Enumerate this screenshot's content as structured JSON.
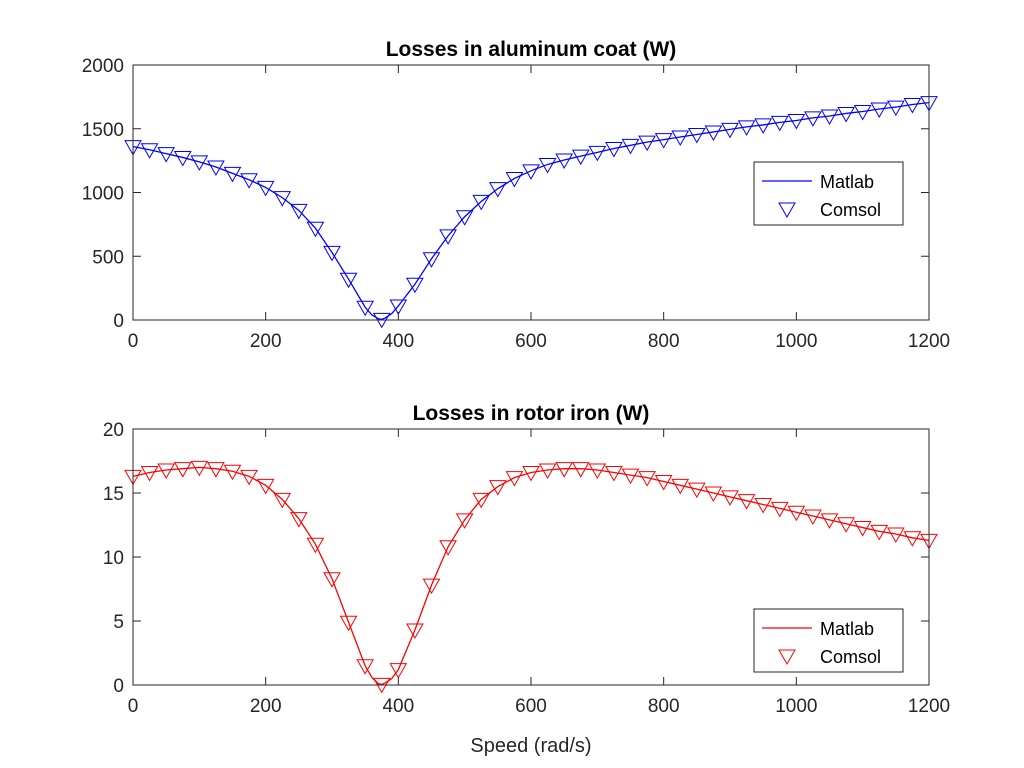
{
  "chart_data": [
    {
      "type": "line",
      "title": "Losses in aluminum coat (W)",
      "xlabel": "",
      "ylabel": "",
      "xlim": [
        0,
        1200
      ],
      "ylim": [
        0,
        2000
      ],
      "xticks": [
        "0",
        "200",
        "400",
        "600",
        "800",
        "1000",
        "1200"
      ],
      "yticks": [
        "0",
        "500",
        "1000",
        "1500",
        "2000"
      ],
      "grid": false,
      "legend_position": "right",
      "color": "#0000ff",
      "series": [
        {
          "name": "Matlab",
          "style": "line",
          "x": [
            0,
            25,
            50,
            75,
            100,
            125,
            150,
            175,
            200,
            225,
            250,
            275,
            300,
            325,
            350,
            360,
            370,
            375,
            380,
            390,
            400,
            425,
            450,
            475,
            500,
            525,
            550,
            575,
            600,
            625,
            650,
            675,
            700,
            725,
            750,
            775,
            800,
            825,
            850,
            875,
            900,
            925,
            950,
            975,
            1000,
            1025,
            1050,
            1075,
            1100,
            1125,
            1150,
            1175,
            1200
          ],
          "y": [
            1360,
            1335,
            1305,
            1275,
            1240,
            1200,
            1150,
            1100,
            1040,
            960,
            860,
            720,
            530,
            320,
            100,
            40,
            10,
            5,
            15,
            50,
            110,
            280,
            480,
            660,
            810,
            930,
            1030,
            1110,
            1170,
            1220,
            1255,
            1285,
            1315,
            1345,
            1370,
            1395,
            1415,
            1435,
            1455,
            1475,
            1495,
            1515,
            1530,
            1550,
            1565,
            1585,
            1600,
            1620,
            1635,
            1655,
            1670,
            1690,
            1705
          ]
        },
        {
          "name": "Comsol",
          "style": "marker",
          "marker": "triangle-down",
          "x": [
            0,
            25,
            50,
            75,
            100,
            125,
            150,
            175,
            200,
            225,
            250,
            275,
            300,
            325,
            350,
            375,
            400,
            425,
            450,
            475,
            500,
            525,
            550,
            575,
            600,
            625,
            650,
            675,
            700,
            725,
            750,
            775,
            800,
            825,
            850,
            875,
            900,
            925,
            950,
            975,
            1000,
            1025,
            1050,
            1075,
            1100,
            1125,
            1150,
            1175,
            1200
          ],
          "y": [
            1360,
            1335,
            1305,
            1275,
            1240,
            1200,
            1150,
            1100,
            1040,
            960,
            860,
            720,
            530,
            320,
            100,
            5,
            110,
            280,
            480,
            660,
            810,
            930,
            1030,
            1110,
            1170,
            1220,
            1255,
            1285,
            1315,
            1345,
            1370,
            1395,
            1415,
            1435,
            1455,
            1475,
            1495,
            1515,
            1530,
            1550,
            1565,
            1585,
            1600,
            1620,
            1635,
            1655,
            1670,
            1690,
            1705
          ]
        }
      ]
    },
    {
      "type": "line",
      "title": "Losses in rotor iron (W)",
      "xlabel": "Speed (rad/s)",
      "ylabel": "",
      "xlim": [
        0,
        1200
      ],
      "ylim": [
        0,
        20
      ],
      "xticks": [
        "0",
        "200",
        "400",
        "600",
        "800",
        "1000",
        "1200"
      ],
      "yticks": [
        "0",
        "5",
        "10",
        "15",
        "20"
      ],
      "grid": false,
      "legend_position": "bottom-right",
      "color": "#ff0000",
      "series": [
        {
          "name": "Matlab",
          "style": "line",
          "x": [
            0,
            25,
            50,
            75,
            100,
            125,
            150,
            175,
            200,
            225,
            250,
            275,
            300,
            325,
            350,
            360,
            370,
            375,
            380,
            390,
            400,
            425,
            450,
            475,
            500,
            525,
            550,
            575,
            600,
            625,
            650,
            675,
            700,
            725,
            750,
            775,
            800,
            825,
            850,
            875,
            900,
            925,
            950,
            975,
            1000,
            1025,
            1050,
            1075,
            1100,
            1125,
            1150,
            1175,
            1200
          ],
          "y": [
            16.3,
            16.6,
            16.8,
            16.9,
            17.0,
            16.9,
            16.7,
            16.3,
            15.6,
            14.5,
            13.0,
            11.0,
            8.3,
            4.9,
            1.5,
            0.6,
            0.1,
            0.05,
            0.15,
            0.5,
            1.2,
            4.3,
            7.8,
            10.8,
            12.9,
            14.5,
            15.5,
            16.2,
            16.6,
            16.8,
            16.9,
            16.9,
            16.8,
            16.6,
            16.4,
            16.2,
            15.9,
            15.6,
            15.3,
            15.0,
            14.7,
            14.4,
            14.1,
            13.8,
            13.5,
            13.2,
            12.9,
            12.6,
            12.3,
            12.0,
            11.8,
            11.5,
            11.3
          ]
        },
        {
          "name": "Comsol",
          "style": "marker",
          "marker": "triangle-down",
          "x": [
            0,
            25,
            50,
            75,
            100,
            125,
            150,
            175,
            200,
            225,
            250,
            275,
            300,
            325,
            350,
            375,
            400,
            425,
            450,
            475,
            500,
            525,
            550,
            575,
            600,
            625,
            650,
            675,
            700,
            725,
            750,
            775,
            800,
            825,
            850,
            875,
            900,
            925,
            950,
            975,
            1000,
            1025,
            1050,
            1075,
            1100,
            1125,
            1150,
            1175,
            1200
          ],
          "y": [
            16.3,
            16.6,
            16.8,
            16.9,
            17.0,
            16.9,
            16.7,
            16.3,
            15.6,
            14.5,
            13.0,
            11.0,
            8.3,
            4.9,
            1.5,
            0.05,
            1.2,
            4.3,
            7.8,
            10.8,
            12.9,
            14.5,
            15.5,
            16.2,
            16.6,
            16.8,
            16.9,
            16.9,
            16.8,
            16.6,
            16.4,
            16.2,
            15.9,
            15.6,
            15.3,
            15.0,
            14.7,
            14.4,
            14.1,
            13.8,
            13.5,
            13.2,
            12.9,
            12.6,
            12.3,
            12.0,
            11.8,
            11.5,
            11.3
          ]
        }
      ]
    }
  ]
}
